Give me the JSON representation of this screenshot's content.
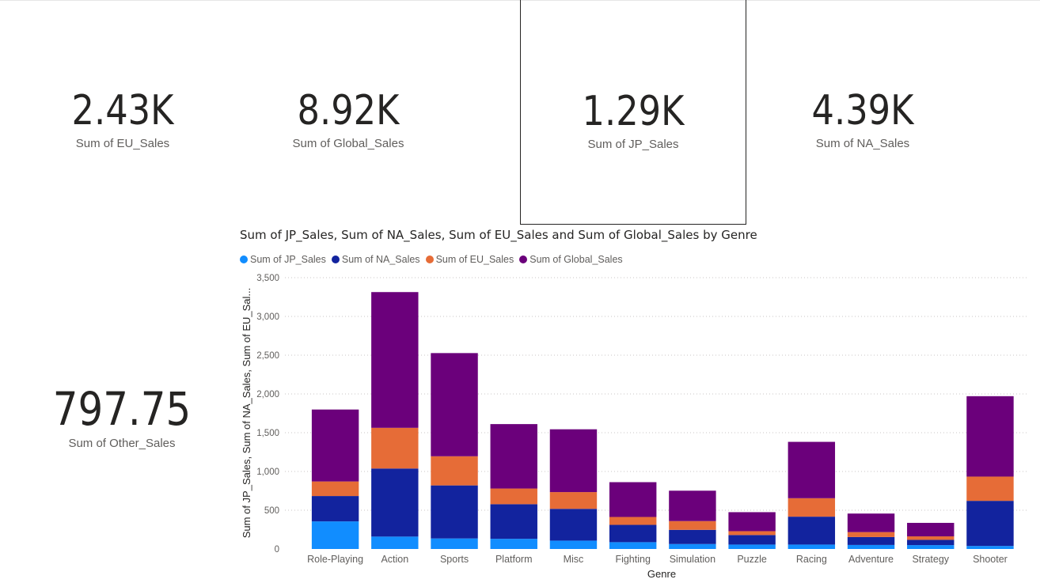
{
  "cards": {
    "eu": {
      "value": "2.43K",
      "label": "Sum of EU_Sales"
    },
    "global": {
      "value": "8.92K",
      "label": "Sum of Global_Sales"
    },
    "jp": {
      "value": "1.29K",
      "label": "Sum of JP_Sales"
    },
    "na": {
      "value": "4.39K",
      "label": "Sum of NA_Sales"
    },
    "other": {
      "value": "797.75",
      "label": "Sum of Other_Sales"
    }
  },
  "chart_data": {
    "type": "bar",
    "stacked": true,
    "title": "Sum of JP_Sales, Sum of NA_Sales, Sum of EU_Sales and Sum of Global_Sales by Genre",
    "xlabel": "Genre",
    "ylabel": "Sum of JP_Sales, Sum of NA_Sales, Sum of EU_Sal...",
    "ylim": [
      0,
      3500
    ],
    "yticks": [
      0,
      500,
      1000,
      1500,
      2000,
      2500,
      3000,
      3500
    ],
    "ytick_labels": [
      "0",
      "500",
      "1,000",
      "1,500",
      "2,000",
      "2,500",
      "3,000",
      "3,500"
    ],
    "grid": true,
    "legend_position": "top-left",
    "categories": [
      "Role-Playing",
      "Action",
      "Sports",
      "Platform",
      "Misc",
      "Fighting",
      "Simulation",
      "Puzzle",
      "Racing",
      "Adventure",
      "Strategy",
      "Shooter"
    ],
    "series": [
      {
        "name": "Sum of JP_Sales",
        "color": "#118DFF",
        "values": [
          356,
          160,
          136,
          131,
          108,
          88,
          64,
          57,
          57,
          52,
          50,
          39
        ]
      },
      {
        "name": "Sum of NA_Sales",
        "color": "#12239E",
        "values": [
          327,
          878,
          684,
          447,
          410,
          223,
          183,
          123,
          360,
          102,
          68,
          582
        ]
      },
      {
        "name": "Sum of EU_Sales",
        "color": "#E66C37",
        "values": [
          188,
          525,
          376,
          202,
          216,
          102,
          113,
          50,
          238,
          64,
          45,
          313
        ]
      },
      {
        "name": "Sum of Global_Sales",
        "color": "#6B007B",
        "values": [
          928,
          1751,
          1331,
          831,
          810,
          449,
          392,
          245,
          727,
          239,
          174,
          1037
        ]
      }
    ]
  }
}
